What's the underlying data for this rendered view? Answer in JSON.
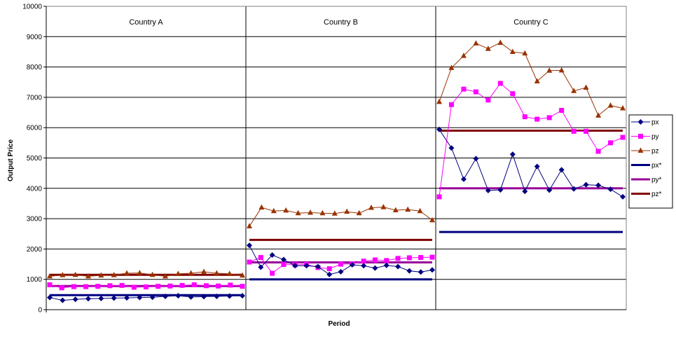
{
  "chart_data": {
    "type": "line",
    "xlabel": "Period",
    "ylabel": "Output Price",
    "ylim": [
      0,
      10000
    ],
    "yticks": [
      0,
      1000,
      2000,
      3000,
      4000,
      5000,
      6000,
      7000,
      8000,
      9000,
      10000
    ],
    "grid": true,
    "legend_position": "right",
    "panels": [
      {
        "label": "Country A",
        "series": [
          {
            "name": "px",
            "values": [
              400,
              310,
              340,
              360,
              370,
              380,
              390,
              400,
              410,
              440,
              460,
              420,
              430,
              440,
              450,
              460
            ]
          },
          {
            "name": "py",
            "values": [
              820,
              720,
              760,
              760,
              770,
              790,
              800,
              740,
              750,
              770,
              780,
              800,
              820,
              790,
              780,
              810,
              770
            ]
          },
          {
            "name": "pz",
            "values": [
              1100,
              1140,
              1150,
              1100,
              1130,
              1140,
              1200,
              1210,
              1150,
              1100,
              1180,
              1200,
              1250,
              1200,
              1180,
              1130
            ]
          },
          {
            "name": "px*",
            "values": [
              480,
              480
            ]
          },
          {
            "name": "py*",
            "values": [
              780,
              780
            ]
          },
          {
            "name": "pz*",
            "values": [
              1150,
              1150
            ]
          }
        ]
      },
      {
        "label": "Country B",
        "series": [
          {
            "name": "px",
            "values": [
              2120,
              1400,
              1800,
              1650,
              1450,
              1450,
              1420,
              1160,
              1250,
              1480,
              1450,
              1370,
              1460,
              1420,
              1280,
              1240,
              1310
            ]
          },
          {
            "name": "py",
            "values": [
              1570,
              1720,
              1200,
              1490,
              1480,
              1490,
              1390,
              1350,
              1500,
              1510,
              1600,
              1640,
              1620,
              1690,
              1710,
              1720,
              1730
            ]
          },
          {
            "name": "pz",
            "values": [
              2750,
              3370,
              3250,
              3270,
              3180,
              3200,
              3180,
              3170,
              3230,
              3180,
              3360,
              3380,
              3280,
              3300,
              3250,
              2950
            ]
          },
          {
            "name": "px*",
            "values": [
              1000,
              1000
            ]
          },
          {
            "name": "py*",
            "values": [
              1560,
              1560
            ]
          },
          {
            "name": "pz*",
            "values": [
              2300,
              2300
            ]
          }
        ]
      },
      {
        "label": "Country C",
        "series": [
          {
            "name": "px",
            "values": [
              5940,
              5330,
              4300,
              4980,
              3930,
              3950,
              5120,
              3900,
              4720,
              3940,
              4610,
              3980,
              4120,
              4100,
              3970,
              3720
            ]
          },
          {
            "name": "py",
            "values": [
              3720,
              6760,
              7270,
              7180,
              6910,
              7460,
              7120,
              6360,
              6280,
              6330,
              6570,
              5880,
              5880,
              5220,
              5500,
              5680
            ]
          },
          {
            "name": "pz",
            "values": [
              6850,
              7970,
              8370,
              8780,
              8600,
              8800,
              8500,
              8450,
              7530,
              7880,
              7890,
              7210,
              7320,
              6400,
              6730,
              6640
            ]
          },
          {
            "name": "px*",
            "values": [
              2560,
              2560
            ]
          },
          {
            "name": "py*",
            "values": [
              4000,
              4000
            ]
          },
          {
            "name": "pz*",
            "values": [
              5900,
              5900
            ]
          }
        ]
      }
    ],
    "colors": {
      "px": "#000080",
      "py": "#ff00ff",
      "pz": "#993300",
      "px*": "#000080",
      "py*": "#990099",
      "pz*": "#800000"
    }
  }
}
